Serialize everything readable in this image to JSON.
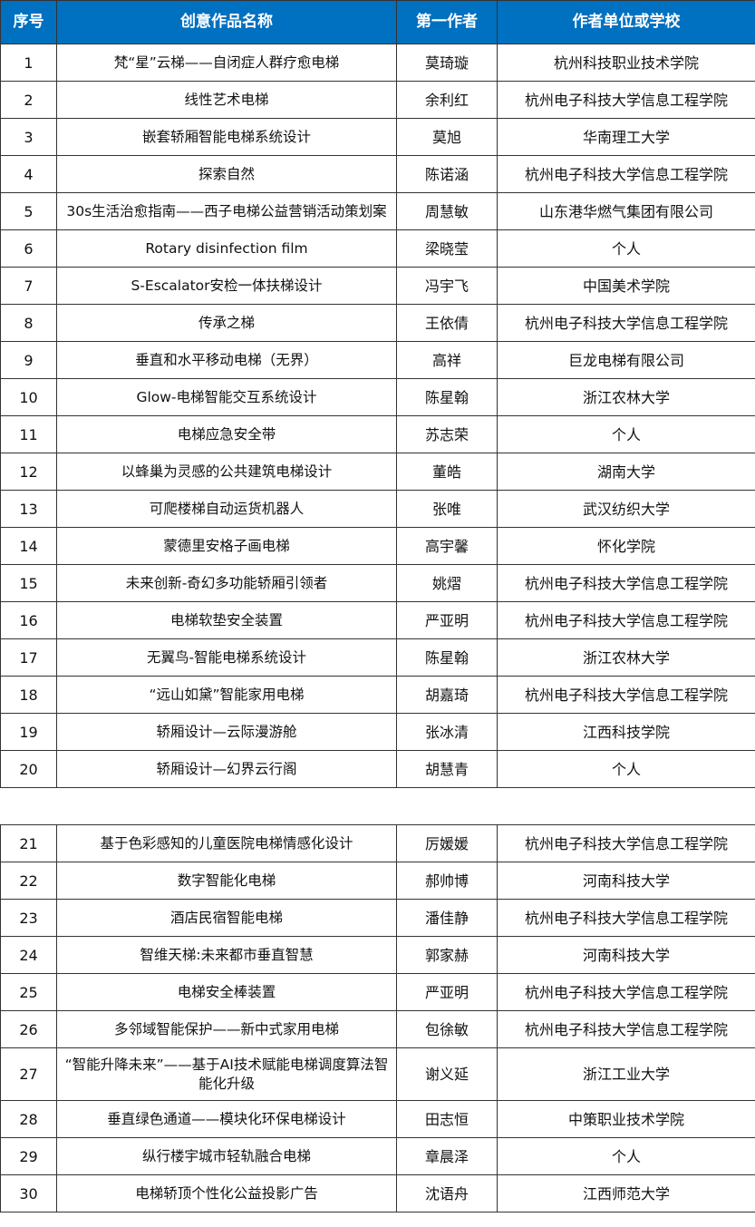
{
  "header_color": "#0070c0",
  "headers": [
    "序号",
    "创意作品名称",
    "第一作者",
    "作者单位或学校"
  ],
  "rows": [
    [
      "1",
      "梵“星”云梯——自闭症人群疗愈电梯",
      "莫琦璇",
      "杭州科技职业技术学院"
    ],
    [
      "2",
      "线性艺术电梯",
      "余利红",
      "杭州电子科技大学信息工程学院"
    ],
    [
      "3",
      "嵌套轿厢智能电梯系统设计",
      "莫旭",
      "华南理工大学"
    ],
    [
      "4",
      "探索自然",
      "陈诺涵",
      "杭州电子科技大学信息工程学院"
    ],
    [
      "5",
      "30s生活治愈指南——西子电梯公益营销活动策划案",
      "周慧敏",
      "山东港华燃气集团有限公司"
    ],
    [
      "6",
      "Rotary disinfection film",
      "梁晓莹",
      "个人"
    ],
    [
      "7",
      "S-Escalator安检一体扶梯设计",
      "冯宇飞",
      "中国美术学院"
    ],
    [
      "8",
      "传承之梯",
      "王依倩",
      "杭州电子科技大学信息工程学院"
    ],
    [
      "9",
      "垂直和水平移动电梯（无界）",
      "高祥",
      "巨龙电梯有限公司"
    ],
    [
      "10",
      "Glow-电梯智能交互系统设计",
      "陈星翰",
      "浙江农林大学"
    ],
    [
      "11",
      "电梯应急安全带",
      "苏志荣",
      "个人"
    ],
    [
      "12",
      "以蜂巢为灵感的公共建筑电梯设计",
      "董皓",
      "湖南大学"
    ],
    [
      "13",
      "可爬楼梯自动运货机器人",
      "张唯",
      "武汉纺织大学"
    ],
    [
      "14",
      "蒙德里安格子画电梯",
      "高宇馨",
      "怀化学院"
    ],
    [
      "15",
      "未来创新-奇幻多功能轿厢引领者",
      "姚熠",
      "杭州电子科技大学信息工程学院"
    ],
    [
      "16",
      "电梯软垫安全装置",
      "严亚明",
      "杭州电子科技大学信息工程学院"
    ],
    [
      "17",
      "无翼鸟-智能电梯系统设计",
      "陈星翰",
      "浙江农林大学"
    ],
    [
      "18",
      "“远山如黛”智能家用电梯",
      "胡嘉琦",
      "杭州电子科技大学信息工程学院"
    ],
    [
      "19",
      "轿厢设计—云际漫游舱",
      "张冰清",
      "江西科技学院"
    ],
    [
      "20",
      "轿厢设计—幻界云行阁",
      "胡慧青",
      "个人"
    ],
    null,
    [
      "21",
      "基于色彩感知的儿童医院电梯情感化设计",
      "厉媛媛",
      "杭州电子科技大学信息工程学院"
    ],
    [
      "22",
      "数字智能化电梯",
      "郝帅博",
      "河南科技大学"
    ],
    [
      "23",
      "酒店民宿智能电梯",
      "潘佳静",
      "杭州电子科技大学信息工程学院"
    ],
    [
      "24",
      "智维天梯:未来都市垂直智慧",
      "郭家赫",
      "河南科技大学"
    ],
    [
      "25",
      "电梯安全棒装置",
      "严亚明",
      "杭州电子科技大学信息工程学院"
    ],
    [
      "26",
      "多邻域智能保护——新中式家用电梯",
      "包徐敏",
      "杭州电子科技大学信息工程学院"
    ],
    [
      "27",
      "“智能升降未来”——基于AI技术赋能电梯调度算法智能化升级",
      "谢义延",
      "浙江工业大学"
    ],
    [
      "28",
      "垂直绿色通道——模块化环保电梯设计",
      "田志恒",
      "中策职业技术学院"
    ],
    [
      "29",
      "纵行楼宇城市轻轨融合电梯",
      "章晨泽",
      "个人"
    ],
    [
      "30",
      "电梯轿顶个性化公益投影广告",
      "沈语舟",
      "江西师范大学"
    ]
  ]
}
